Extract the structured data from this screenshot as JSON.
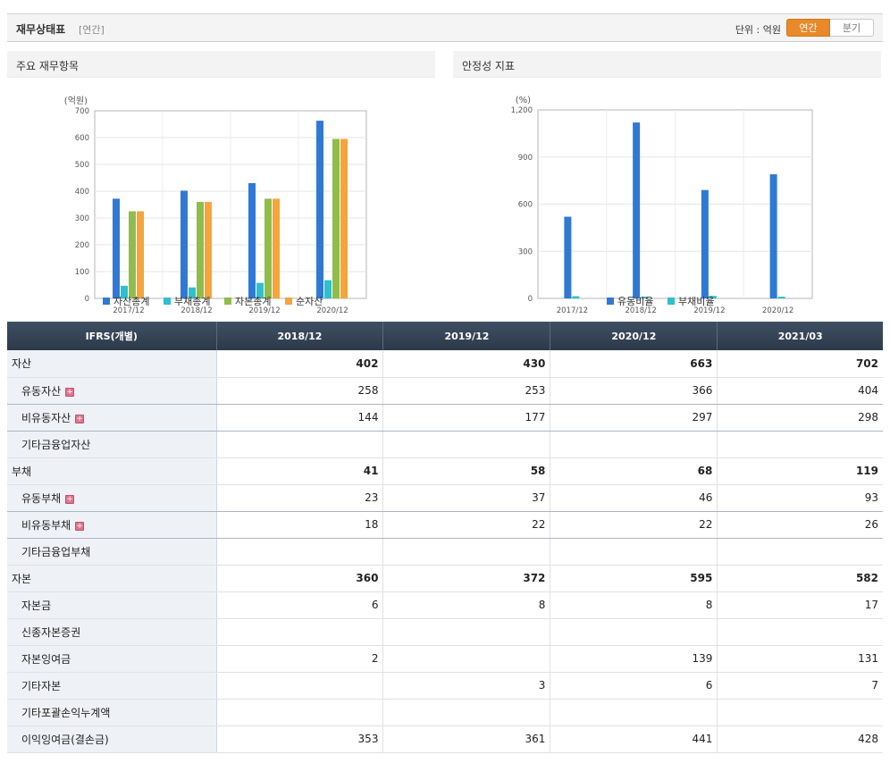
{
  "header": {
    "title": "재무상태표",
    "subtitle": "[연간]",
    "unit": "단위 : 억원",
    "toggle_annual": "연간",
    "toggle_quarter": "분기"
  },
  "panels": {
    "left_title": "주요 재무항목",
    "right_title": "안정성 지표"
  },
  "chart_data": [
    {
      "type": "bar",
      "title": "주요 재무항목",
      "ylabel": "(억원)",
      "categories": [
        "2017/12",
        "2018/12",
        "2019/12",
        "2020/12"
      ],
      "ylim": [
        0,
        700
      ],
      "yticks": [
        0,
        100,
        200,
        300,
        400,
        500,
        600,
        700
      ],
      "ytick_labels": [
        "0",
        "100",
        "200",
        "300",
        "400",
        "500",
        "600",
        "700"
      ],
      "grid": true,
      "legend_position": "bottom",
      "series": [
        {
          "name": "자산총계",
          "color": "#2f79d5",
          "values": [
            372,
            402,
            430,
            663
          ]
        },
        {
          "name": "부채총계",
          "color": "#2fbfcf",
          "values": [
            47,
            41,
            58,
            68
          ]
        },
        {
          "name": "자본총계",
          "color": "#8ebd4c",
          "values": [
            325,
            360,
            372,
            595
          ]
        },
        {
          "name": "순자산",
          "color": "#f5a53a",
          "values": [
            325,
            360,
            372,
            595
          ]
        }
      ]
    },
    {
      "type": "bar",
      "title": "안정성 지표",
      "ylabel": "(%)",
      "categories": [
        "2017/12",
        "2018/12",
        "2019/12",
        "2020/12"
      ],
      "ylim": [
        0,
        1200
      ],
      "yticks": [
        0,
        300,
        600,
        900,
        1200
      ],
      "ytick_labels": [
        "0",
        "300",
        "600",
        "900",
        "1,200"
      ],
      "grid": true,
      "legend_position": "bottom",
      "series": [
        {
          "name": "유동비율",
          "color": "#2f79d5",
          "values": [
            520,
            1120,
            690,
            790
          ]
        },
        {
          "name": "부채비율",
          "color": "#2fbfcf",
          "values": [
            14,
            11,
            16,
            11
          ]
        }
      ]
    }
  ],
  "table": {
    "header": [
      "IFRS(개별)",
      "2018/12",
      "2019/12",
      "2020/12",
      "2021/03"
    ],
    "rows": [
      {
        "label": "자산",
        "values": [
          "402",
          "430",
          "663",
          "702"
        ],
        "total": true,
        "expand": false
      },
      {
        "label": "유동자산",
        "values": [
          "258",
          "253",
          "366",
          "404"
        ],
        "total": false,
        "expand": true
      },
      {
        "label": "비유동자산",
        "values": [
          "144",
          "177",
          "297",
          "298"
        ],
        "total": false,
        "expand": true
      },
      {
        "label": "기타금융업자산",
        "values": [
          "",
          "",
          "",
          ""
        ],
        "total": false,
        "expand": false
      },
      {
        "label": "부채",
        "values": [
          "41",
          "58",
          "68",
          "119"
        ],
        "total": true,
        "expand": false
      },
      {
        "label": "유동부채",
        "values": [
          "23",
          "37",
          "46",
          "93"
        ],
        "total": false,
        "expand": true
      },
      {
        "label": "비유동부채",
        "values": [
          "18",
          "22",
          "22",
          "26"
        ],
        "total": false,
        "expand": true
      },
      {
        "label": "기타금융업부채",
        "values": [
          "",
          "",
          "",
          ""
        ],
        "total": false,
        "expand": false
      },
      {
        "label": "자본",
        "values": [
          "360",
          "372",
          "595",
          "582"
        ],
        "total": true,
        "expand": false
      },
      {
        "label": "자본금",
        "values": [
          "6",
          "8",
          "8",
          "17"
        ],
        "total": false,
        "expand": false
      },
      {
        "label": "신종자본증권",
        "values": [
          "",
          "",
          "",
          ""
        ],
        "total": false,
        "expand": false
      },
      {
        "label": "자본잉여금",
        "values": [
          "2",
          "",
          "139",
          "131"
        ],
        "total": false,
        "expand": false
      },
      {
        "label": "기타자본",
        "values": [
          "",
          "3",
          "6",
          "7"
        ],
        "total": false,
        "expand": false
      },
      {
        "label": "기타포괄손익누계액",
        "values": [
          "",
          "",
          "",
          ""
        ],
        "total": false,
        "expand": false
      },
      {
        "label": "이익잉여금(결손금)",
        "values": [
          "353",
          "361",
          "441",
          "428"
        ],
        "total": false,
        "expand": false
      }
    ]
  },
  "expand_icon": "plus-square-icon"
}
